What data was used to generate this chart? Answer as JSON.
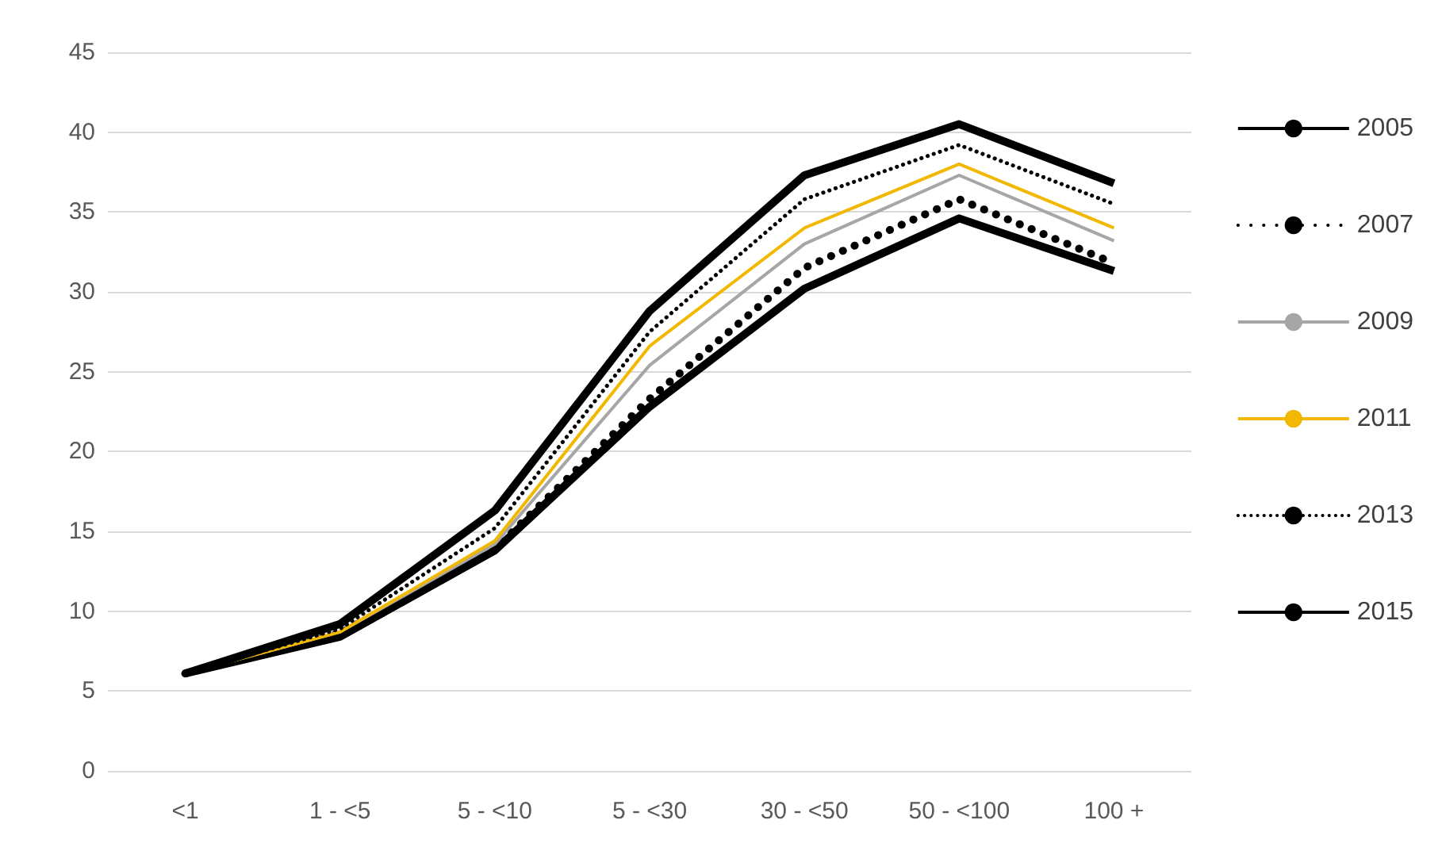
{
  "chart_data": {
    "type": "line",
    "categories": [
      "<1",
      "1 - <5",
      "5 - <10",
      "5 - <30",
      "30 - <50",
      "50 - <100",
      "100 +"
    ],
    "series": [
      {
        "name": "2005",
        "color": "#000000",
        "line_style": "solid",
        "values": [
          6.1,
          8.4,
          13.8,
          22.8,
          30.2,
          34.6,
          31.3
        ]
      },
      {
        "name": "2007",
        "color": "#000000",
        "line_style": "dotted",
        "values": [
          6.1,
          8.6,
          13.9,
          23.3,
          31.5,
          35.8,
          31.8
        ]
      },
      {
        "name": "2009",
        "color": "#a6a6a6",
        "line_style": "solid",
        "values": [
          6.1,
          8.7,
          14.2,
          25.4,
          33.0,
          37.3,
          33.2
        ]
      },
      {
        "name": "2011",
        "color": "#f2b800",
        "line_style": "solid",
        "values": [
          6.1,
          8.7,
          14.4,
          26.6,
          34.0,
          38.0,
          34.0
        ]
      },
      {
        "name": "2013",
        "color": "#000000",
        "line_style": "dotted",
        "values": [
          6.1,
          8.9,
          15.2,
          27.5,
          35.8,
          39.2,
          35.5
        ]
      },
      {
        "name": "2015",
        "color": "#000000",
        "line_style": "solid",
        "values": [
          6.1,
          9.2,
          16.3,
          28.8,
          37.3,
          40.5,
          36.8
        ]
      }
    ],
    "ylim": [
      0,
      45
    ],
    "yticks": [
      0,
      5,
      10,
      15,
      20,
      25,
      30,
      35,
      40,
      45
    ],
    "grid": "y",
    "legend": "right",
    "marker": "none"
  }
}
